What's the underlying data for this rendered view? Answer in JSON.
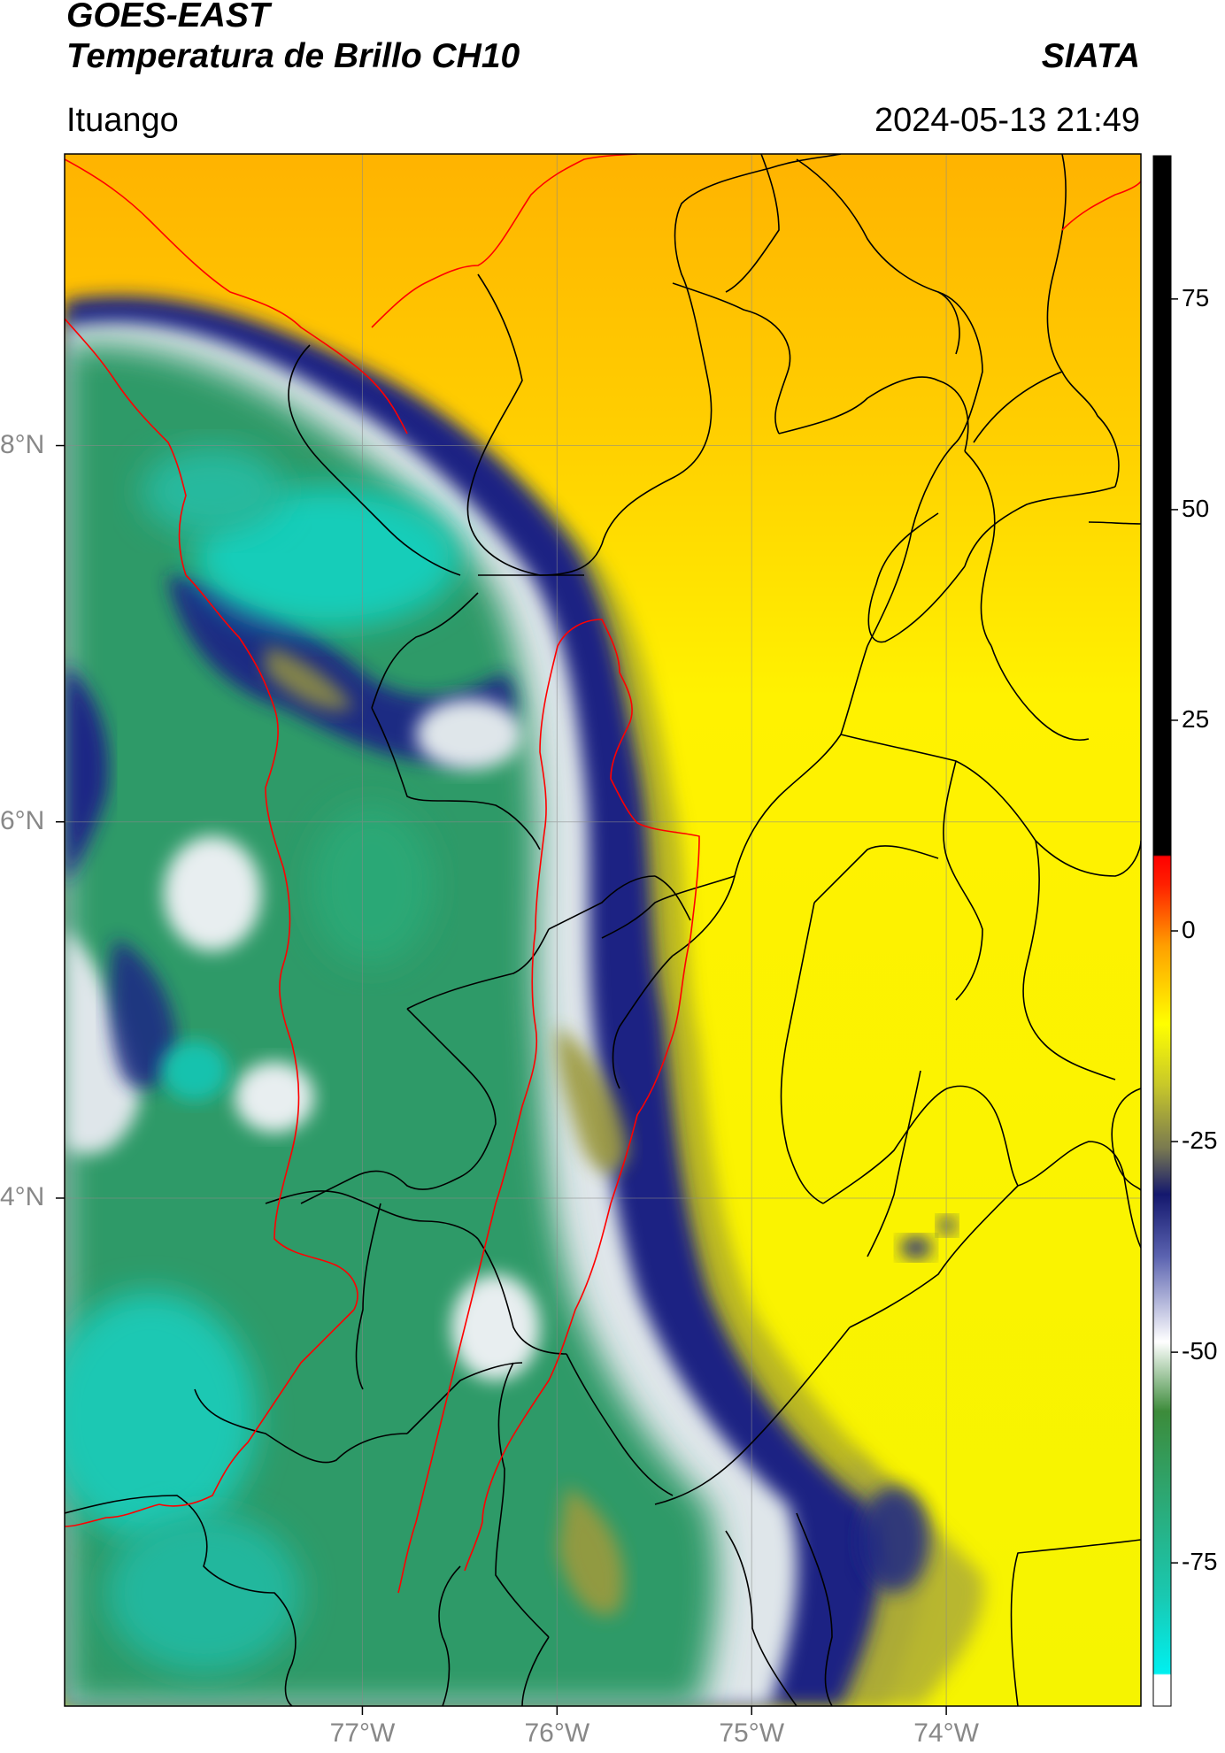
{
  "header": {
    "satellite": "GOES-EAST",
    "product": "Temperatura de Brillo CH10",
    "agency": "SIATA",
    "region": "Ituango",
    "datetime": "2024-05-13 21:49"
  },
  "map": {
    "lat_labels": [
      "8°N",
      "6°N",
      "4°N"
    ],
    "lon_labels": [
      "77°W",
      "76°W",
      "75°W",
      "74°W"
    ],
    "lat_values": [
      8,
      6,
      4
    ],
    "lon_values": [
      -77,
      -76,
      -75,
      -74
    ],
    "extent": {
      "lon_min": -78.53,
      "lon_max": -73.0,
      "lat_min": 1.3,
      "lat_max": 9.55
    },
    "colors": {
      "warm_orange": "#ffb000",
      "yellow": "#ffff00",
      "olive": "#a7a730",
      "navy": "#1a237e",
      "white": "#ffffff",
      "green": "#2e9e66",
      "cyan": "#1ad6c4",
      "border_black": "#000000",
      "border_red": "#ff0000"
    }
  },
  "colorbar": {
    "ticks": [
      "75",
      "50",
      "25",
      "0",
      "-25",
      "-50",
      "-75"
    ],
    "tick_values": [
      75,
      50,
      25,
      0,
      -25,
      -50,
      -75
    ],
    "range": [
      -92,
      92
    ]
  }
}
